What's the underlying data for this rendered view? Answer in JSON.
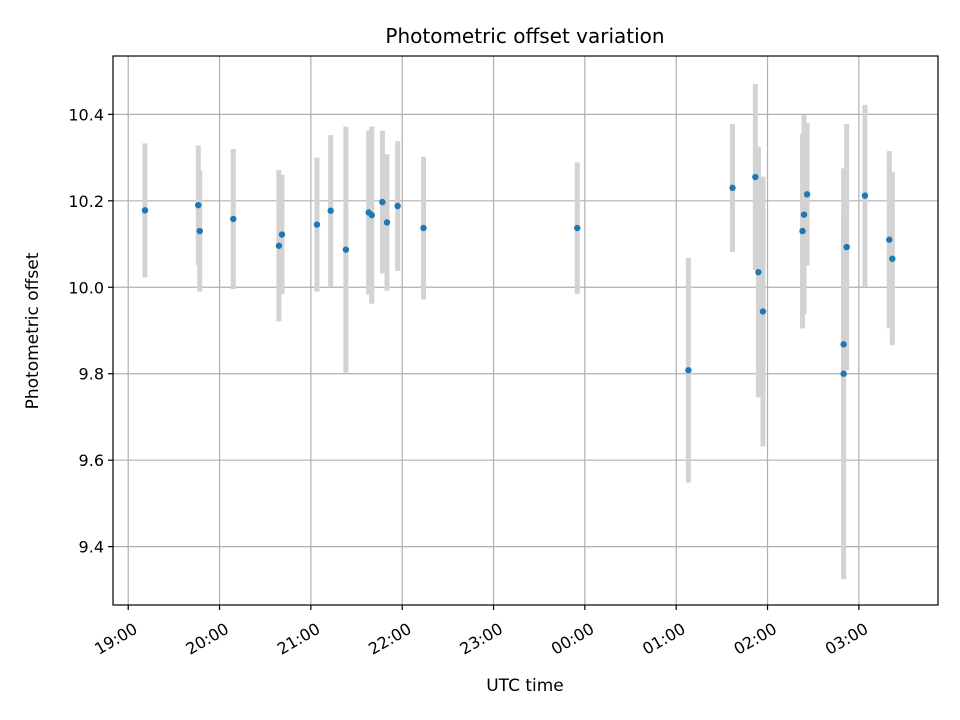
{
  "chart_data": {
    "type": "scatter",
    "title": "Photometric offset variation",
    "xlabel": "UTC time",
    "ylabel": "Photometric offset",
    "x_scale": "time",
    "grid": true,
    "legend": "none",
    "xlim": [
      "18:50",
      "03:52"
    ],
    "ylim": [
      9.265,
      10.535
    ],
    "x_ticks": [
      "19:00",
      "20:00",
      "21:00",
      "22:00",
      "23:00",
      "00:00",
      "01:00",
      "02:00",
      "03:00"
    ],
    "y_ticks": [
      9.4,
      9.6,
      9.8,
      10.0,
      10.2,
      10.4
    ],
    "y_tick_labels": [
      "9.4",
      "9.6",
      "9.8",
      "10.0",
      "10.2",
      "10.4"
    ],
    "marker_color": "#1f77b4",
    "errorbar_color": "#d3d3d3",
    "points": [
      {
        "x": "19:11",
        "y": 10.178,
        "err": 0.155
      },
      {
        "x": "19:46",
        "y": 10.19,
        "err": 0.138
      },
      {
        "x": "19:47",
        "y": 10.13,
        "err": 0.14
      },
      {
        "x": "20:09",
        "y": 10.158,
        "err": 0.162
      },
      {
        "x": "20:39",
        "y": 10.096,
        "err": 0.175
      },
      {
        "x": "20:41",
        "y": 10.122,
        "err": 0.138
      },
      {
        "x": "21:04",
        "y": 10.145,
        "err": 0.155
      },
      {
        "x": "21:13",
        "y": 10.177,
        "err": 0.175
      },
      {
        "x": "21:23",
        "y": 10.087,
        "err": 0.285
      },
      {
        "x": "21:38",
        "y": 10.173,
        "err": 0.19
      },
      {
        "x": "21:40",
        "y": 10.167,
        "err": 0.205
      },
      {
        "x": "21:47",
        "y": 10.197,
        "err": 0.165
      },
      {
        "x": "21:50",
        "y": 10.15,
        "err": 0.158
      },
      {
        "x": "21:57",
        "y": 10.188,
        "err": 0.15
      },
      {
        "x": "22:14",
        "y": 10.137,
        "err": 0.165
      },
      {
        "x": "23:55",
        "y": 10.137,
        "err": 0.152
      },
      {
        "x": "01:08",
        "y": 9.808,
        "err": 0.26
      },
      {
        "x": "01:37",
        "y": 10.23,
        "err": 0.148
      },
      {
        "x": "01:52",
        "y": 10.255,
        "err": 0.215
      },
      {
        "x": "01:54",
        "y": 10.035,
        "err": 0.29
      },
      {
        "x": "01:57",
        "y": 9.944,
        "err": 0.312
      },
      {
        "x": "02:23",
        "y": 10.13,
        "err": 0.225
      },
      {
        "x": "02:24",
        "y": 10.168,
        "err": 0.23
      },
      {
        "x": "02:26",
        "y": 10.215,
        "err": 0.165
      },
      {
        "x": "02:50",
        "y": 9.868,
        "err": 0.3
      },
      {
        "x": "02:50",
        "y": 9.8,
        "err": 0.475
      },
      {
        "x": "02:52",
        "y": 10.093,
        "err": 0.285
      },
      {
        "x": "03:04",
        "y": 10.212,
        "err": 0.21
      },
      {
        "x": "03:20",
        "y": 10.11,
        "err": 0.205
      },
      {
        "x": "03:22",
        "y": 10.066,
        "err": 0.2
      }
    ]
  }
}
